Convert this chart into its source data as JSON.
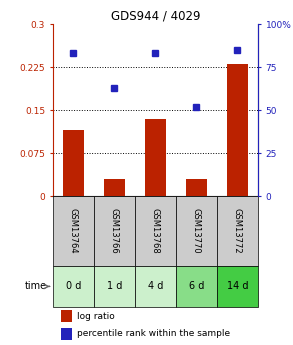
{
  "title": "GDS944 / 4029",
  "samples": [
    "GSM13764",
    "GSM13766",
    "GSM13768",
    "GSM13770",
    "GSM13772"
  ],
  "time_labels": [
    "0 d",
    "1 d",
    "4 d",
    "6 d",
    "14 d"
  ],
  "log_ratio": [
    0.115,
    0.03,
    0.135,
    0.03,
    0.23
  ],
  "percentile_rank": [
    83,
    63,
    83,
    52,
    85
  ],
  "bar_color": "#bb2200",
  "dot_color": "#2222bb",
  "ylim_left": [
    0,
    0.3
  ],
  "ylim_right": [
    0,
    100
  ],
  "yticks_left": [
    0,
    0.075,
    0.15,
    0.225,
    0.3
  ],
  "ytick_labels_left": [
    "0",
    "0.075",
    "0.15",
    "0.225",
    "0.3"
  ],
  "yticks_right": [
    0,
    25,
    50,
    75,
    100
  ],
  "ytick_labels_right": [
    "0",
    "25",
    "50",
    "75",
    "100%"
  ],
  "hlines": [
    0.075,
    0.15,
    0.225
  ],
  "sample_bg_color": "#cccccc",
  "time_bg_colors": [
    "#ccf0cc",
    "#ccf0cc",
    "#ccf0cc",
    "#88dd88",
    "#44cc44"
  ],
  "legend_labels": [
    "log ratio",
    "percentile rank within the sample"
  ],
  "bar_width": 0.5,
  "fig_bg": "#ffffff"
}
